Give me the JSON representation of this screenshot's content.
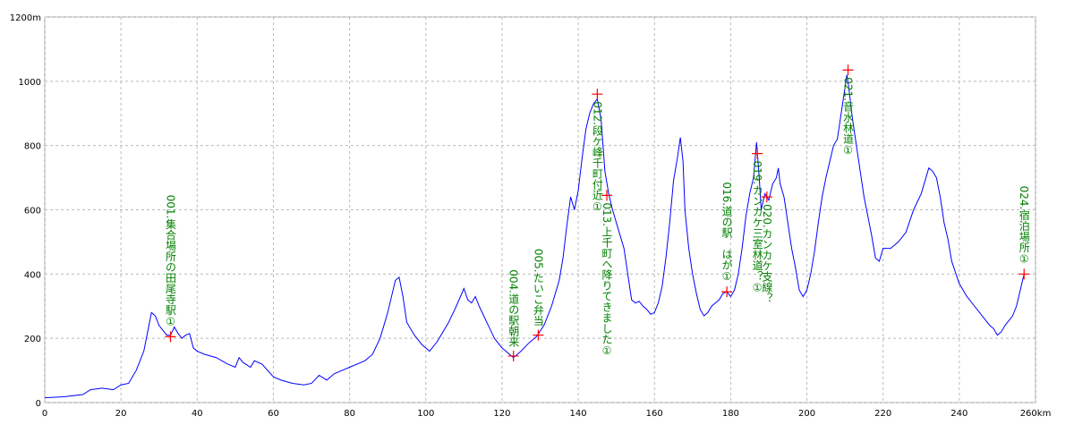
{
  "chart_data": {
    "type": "line",
    "color": "#0000ff",
    "marker_color": "#ff0000",
    "label_color": "#008000",
    "grid": true,
    "xlim": [
      0,
      260
    ],
    "xticks": [
      0,
      20,
      40,
      60,
      80,
      100,
      120,
      140,
      160,
      180,
      200,
      220,
      240,
      {
        "value": 260,
        "label": "260km"
      }
    ],
    "ylim": [
      0,
      1200
    ],
    "yticks": [
      0,
      200,
      400,
      600,
      800,
      1000,
      {
        "value": 1200,
        "label": "1200m"
      }
    ],
    "x": [
      0,
      5,
      10,
      12,
      15,
      18,
      20,
      22,
      24,
      26,
      27,
      28,
      29,
      30,
      32,
      33,
      34,
      35,
      36,
      37,
      38,
      39,
      40,
      42,
      45,
      48,
      50,
      51,
      52,
      54,
      55,
      57,
      60,
      62,
      65,
      68,
      70,
      72,
      74,
      76,
      78,
      80,
      84,
      86,
      88,
      90,
      92,
      93,
      94,
      95,
      97,
      99,
      101,
      103,
      106,
      108,
      110,
      111,
      112,
      113,
      114,
      116,
      118,
      120,
      122,
      123,
      125,
      127,
      129,
      131,
      133,
      135,
      136,
      137,
      138,
      139,
      140,
      141,
      142,
      143,
      144,
      145,
      146,
      147,
      148,
      149,
      150,
      151,
      152,
      153,
      154,
      155,
      156,
      157,
      158,
      159,
      160,
      161,
      162,
      163,
      164,
      165,
      166,
      166.8,
      167.5,
      168,
      169,
      170,
      171,
      172,
      173,
      174,
      175,
      176,
      177,
      178,
      179,
      180,
      181,
      182,
      183,
      184,
      185,
      186,
      186.8,
      187.5,
      188,
      189,
      190,
      191,
      192,
      192.5,
      193,
      194,
      195,
      196,
      197,
      198,
      199,
      200,
      201,
      202,
      203,
      204,
      205,
      206,
      207,
      208,
      209,
      210,
      210.5,
      211,
      212,
      213,
      214,
      215,
      216,
      217,
      218,
      219,
      220,
      222,
      224,
      226,
      228,
      230,
      232,
      233,
      234,
      235,
      236,
      237,
      238,
      240,
      242,
      244,
      246,
      248,
      249,
      250,
      251,
      252,
      254,
      255,
      256,
      257
    ],
    "values": [
      15,
      18,
      25,
      40,
      45,
      40,
      55,
      60,
      100,
      160,
      220,
      280,
      270,
      240,
      210,
      210,
      235,
      215,
      200,
      210,
      215,
      170,
      160,
      150,
      140,
      120,
      110,
      140,
      125,
      110,
      130,
      120,
      80,
      70,
      60,
      55,
      60,
      85,
      70,
      90,
      100,
      110,
      130,
      150,
      200,
      280,
      380,
      390,
      330,
      250,
      210,
      180,
      160,
      190,
      250,
      300,
      355,
      320,
      310,
      330,
      300,
      250,
      200,
      170,
      150,
      140,
      160,
      185,
      205,
      240,
      300,
      380,
      450,
      550,
      640,
      600,
      660,
      760,
      850,
      900,
      930,
      945,
      880,
      720,
      650,
      600,
      560,
      520,
      480,
      400,
      320,
      310,
      315,
      300,
      290,
      275,
      280,
      310,
      360,
      450,
      560,
      690,
      760,
      825,
      750,
      600,
      480,
      400,
      340,
      290,
      270,
      280,
      300,
      310,
      320,
      340,
      345,
      330,
      350,
      400,
      480,
      580,
      650,
      700,
      810,
      700,
      600,
      650,
      630,
      680,
      700,
      730,
      680,
      640,
      560,
      480,
      420,
      350,
      330,
      350,
      400,
      470,
      560,
      640,
      700,
      750,
      800,
      820,
      900,
      980,
      1020,
      980,
      880,
      800,
      720,
      640,
      580,
      520,
      450,
      440,
      480,
      480,
      500,
      530,
      600,
      650,
      730,
      720,
      700,
      640,
      560,
      510,
      440,
      370,
      330,
      300,
      270,
      240,
      230,
      210,
      220,
      240,
      270,
      300,
      350,
      400
    ],
    "waypoints": [
      {
        "x": 33,
        "y": 205,
        "label": "001.集合場所の田尾寺駅①"
      },
      {
        "x": 123,
        "y": 145,
        "label": "004.道の駅朝来"
      },
      {
        "x": 129.5,
        "y": 210,
        "label": "005.たいこ弁当"
      },
      {
        "x": 145,
        "y": 960,
        "label": "012.段ケ峰千町付近①"
      },
      {
        "x": 147.5,
        "y": 645,
        "label": "013.上千町へ降りてきました①"
      },
      {
        "x": 179,
        "y": 345,
        "label": "016.道の駅　はが①"
      },
      {
        "x": 187,
        "y": 775,
        "label": "019.カンカケ三室林道？①"
      },
      {
        "x": 189.5,
        "y": 640,
        "label": "020.カンカケ支線？"
      },
      {
        "x": 210.8,
        "y": 1035,
        "label": "021.音水林道①"
      },
      {
        "x": 257,
        "y": 400,
        "label": "024.宿泊場所①"
      }
    ]
  }
}
